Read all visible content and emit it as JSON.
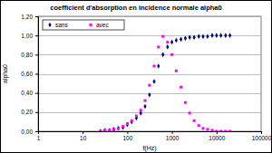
{
  "chart_data": {
    "type": "scatter",
    "title": "coefficient d'absorption en incidence normale alpha0",
    "x_label": "f(Hz)",
    "y_label": "alpha0",
    "log": "x",
    "grid": true,
    "legend": "top-left",
    "xlim": [
      1,
      100000
    ],
    "xticks": [
      1,
      10,
      100,
      1000,
      10000,
      100000
    ],
    "ylim": [
      0,
      1.2
    ],
    "yticks": [
      {
        "value": 0,
        "label": "0,00"
      },
      {
        "value": 0.2,
        "label": "0,20"
      },
      {
        "value": 0.4,
        "label": "0,40"
      },
      {
        "value": 0.6,
        "label": "0,60"
      },
      {
        "value": 0.8,
        "label": "0,80"
      },
      {
        "value": 1,
        "label": "1,00"
      },
      {
        "value": 1.2,
        "label": "1,20"
      }
    ],
    "x": [
      25,
      31.5,
      40,
      50,
      63,
      80,
      100,
      125,
      160,
      200,
      250,
      315,
      400,
      500,
      630,
      800,
      1000,
      1250,
      1600,
      2000,
      2500,
      3150,
      4000,
      5000,
      6300,
      8000,
      10000,
      12500,
      16000,
      20000
    ],
    "series": [
      {
        "name": "sans",
        "color": "#000080",
        "marker": "diamond",
        "values": [
          0.0,
          0.01,
          0.01,
          0.02,
          0.03,
          0.04,
          0.07,
          0.1,
          0.14,
          0.19,
          0.26,
          0.38,
          0.52,
          0.68,
          0.8,
          0.88,
          0.93,
          0.95,
          0.96,
          0.97,
          0.98,
          0.98,
          0.99,
          0.99,
          0.99,
          1.0,
          1.0,
          1.0,
          1.0,
          1.0
        ]
      },
      {
        "name": "avec",
        "color": "#ff00ff",
        "marker": "square",
        "values": [
          0.0,
          0.01,
          0.01,
          0.02,
          0.03,
          0.05,
          0.08,
          0.11,
          0.16,
          0.22,
          0.32,
          0.48,
          0.68,
          0.88,
          0.99,
          0.93,
          0.8,
          0.63,
          0.46,
          0.3,
          0.19,
          0.11,
          0.06,
          0.03,
          0.02,
          0.01,
          0.0,
          0.0,
          0.0,
          0.0
        ]
      }
    ]
  }
}
